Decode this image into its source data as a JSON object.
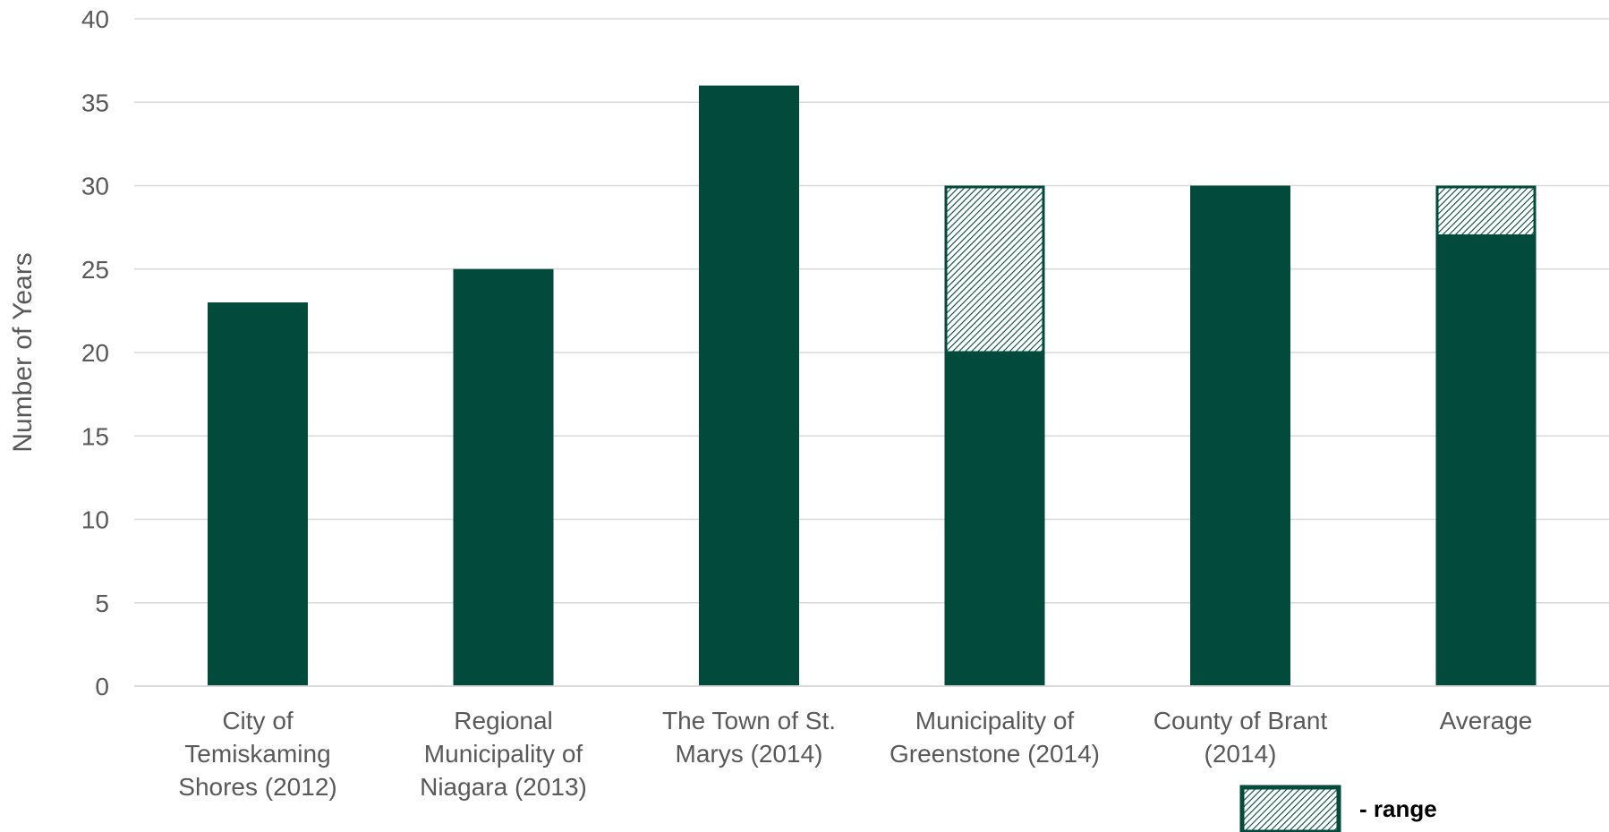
{
  "colors": {
    "bar": "#024a3b",
    "range_stripe": "#024a3b",
    "range_bg": "#ffffff",
    "gridline": "#d9d9d9",
    "text": "#595959"
  },
  "chart_data": {
    "type": "bar",
    "stacked": true,
    "title": "",
    "xlabel": "",
    "ylabel": "Number of Years",
    "ylim": [
      0,
      40
    ],
    "yticks": [
      "0",
      "5",
      "10",
      "15",
      "20",
      "25",
      "30",
      "35",
      "40"
    ],
    "grid": true,
    "categories": [
      [
        "City of",
        "Temiskaming",
        "Shores (2012)"
      ],
      [
        "Regional",
        "Municipality of",
        "Niagara (2013)"
      ],
      [
        "The Town of St.",
        "Marys (2014)"
      ],
      [
        "Municipality of",
        "Greenstone (2014)"
      ],
      [
        "County of Brant",
        "(2014)"
      ],
      [
        "Average"
      ]
    ],
    "series": [
      {
        "values": [
          23,
          25,
          36,
          20,
          30,
          27
        ],
        "pattern": "solid"
      },
      {
        "name": "- range",
        "values": [
          0,
          0,
          0,
          10,
          0,
          3
        ],
        "pattern": "diagonal-hatch"
      }
    ],
    "legend": {
      "position": "bottom-right",
      "entries": [
        "- range"
      ]
    }
  }
}
